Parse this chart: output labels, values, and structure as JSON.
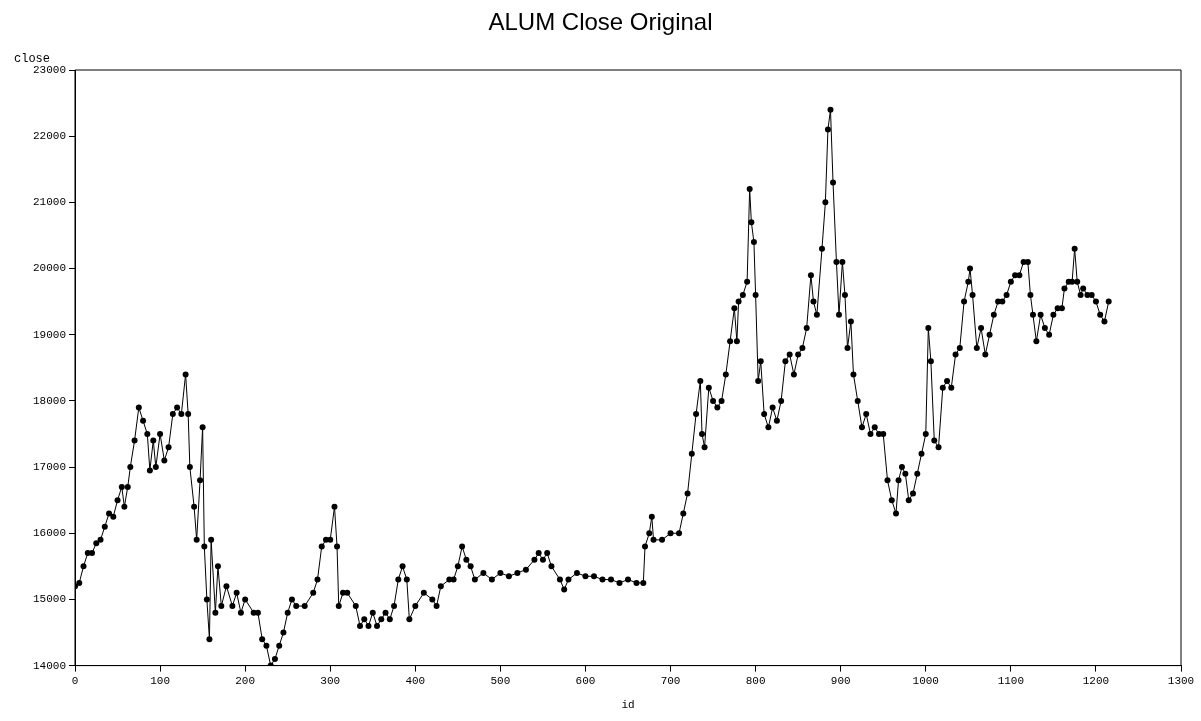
{
  "chart_data": {
    "type": "line",
    "title": "ALUM Close Original",
    "xlabel": "id",
    "ylabel": "close",
    "x": [
      0,
      5,
      10,
      15,
      20,
      25,
      30,
      35,
      40,
      45,
      50,
      55,
      58,
      62,
      65,
      70,
      75,
      80,
      85,
      88,
      92,
      95,
      100,
      105,
      110,
      115,
      120,
      125,
      130,
      133,
      135,
      140,
      143,
      147,
      150,
      152,
      155,
      158,
      160,
      165,
      168,
      172,
      178,
      185,
      190,
      195,
      200,
      210,
      215,
      220,
      225,
      230,
      235,
      240,
      245,
      250,
      255,
      260,
      270,
      280,
      285,
      290,
      295,
      300,
      305,
      308,
      310,
      315,
      320,
      330,
      335,
      340,
      345,
      350,
      355,
      360,
      365,
      370,
      375,
      380,
      385,
      390,
      393,
      400,
      410,
      420,
      425,
      430,
      440,
      445,
      450,
      455,
      460,
      465,
      470,
      480,
      490,
      500,
      510,
      520,
      530,
      540,
      545,
      550,
      555,
      560,
      570,
      575,
      580,
      590,
      600,
      610,
      620,
      630,
      640,
      650,
      660,
      668,
      670,
      675,
      678,
      680,
      690,
      700,
      710,
      715,
      720,
      725,
      730,
      735,
      737,
      740,
      745,
      750,
      755,
      760,
      765,
      770,
      775,
      778,
      780,
      785,
      790,
      793,
      795,
      798,
      800,
      803,
      806,
      810,
      815,
      820,
      825,
      830,
      835,
      840,
      845,
      850,
      855,
      860,
      865,
      868,
      872,
      878,
      882,
      885,
      888,
      891,
      895,
      898,
      902,
      905,
      908,
      912,
      915,
      920,
      925,
      930,
      935,
      940,
      945,
      950,
      955,
      960,
      965,
      968,
      972,
      976,
      980,
      985,
      990,
      995,
      1000,
      1003,
      1006,
      1010,
      1015,
      1020,
      1025,
      1030,
      1035,
      1040,
      1045,
      1050,
      1052,
      1055,
      1060,
      1065,
      1070,
      1075,
      1080,
      1085,
      1090,
      1095,
      1100,
      1105,
      1110,
      1115,
      1120,
      1123,
      1126,
      1130,
      1135,
      1140,
      1145,
      1150,
      1155,
      1160,
      1163,
      1168,
      1172,
      1175,
      1178,
      1182,
      1185,
      1190,
      1195,
      1200,
      1205,
      1210,
      1215
    ],
    "series": [
      {
        "color": "#000000",
        "values": [
          15200,
          15250,
          15500,
          15700,
          15700,
          15850,
          15900,
          16100,
          16300,
          16250,
          16500,
          16700,
          16400,
          16700,
          17000,
          17400,
          17900,
          17700,
          17500,
          16950,
          17400,
          17000,
          17500,
          17100,
          17300,
          17800,
          17900,
          17800,
          18400,
          17800,
          17000,
          16400,
          15900,
          16800,
          17600,
          15800,
          15000,
          14400,
          15900,
          14800,
          15500,
          14900,
          15200,
          14900,
          15100,
          14800,
          15000,
          14800,
          14800,
          14400,
          14300,
          14000,
          14100,
          14300,
          14500,
          14800,
          15000,
          14900,
          14900,
          15100,
          15300,
          15800,
          15900,
          15900,
          16400,
          15800,
          14900,
          15100,
          15100,
          14900,
          14600,
          14700,
          14600,
          14800,
          14600,
          14700,
          14800,
          14700,
          14900,
          15300,
          15500,
          15300,
          14700,
          14900,
          15100,
          15000,
          14900,
          15200,
          15300,
          15300,
          15500,
          15800,
          15600,
          15500,
          15300,
          15400,
          15300,
          15400,
          15350,
          15400,
          15450,
          15600,
          15700,
          15600,
          15700,
          15500,
          15300,
          15150,
          15300,
          15400,
          15350,
          15350,
          15300,
          15300,
          15250,
          15300,
          15250,
          15250,
          15800,
          16000,
          16250,
          15900,
          15900,
          16000,
          16000,
          16300,
          16600,
          17200,
          17800,
          18300,
          17500,
          17300,
          18200,
          18000,
          17900,
          18000,
          18400,
          18900,
          19400,
          18900,
          19500,
          19600,
          19800,
          21200,
          20700,
          20400,
          19600,
          18300,
          18600,
          17800,
          17600,
          17900,
          17700,
          18000,
          18600,
          18700,
          18400,
          18700,
          18800,
          19100,
          19900,
          19500,
          19300,
          20300,
          21000,
          22100,
          22400,
          21300,
          20100,
          19300,
          20100,
          19600,
          18800,
          19200,
          18400,
          18000,
          17600,
          17800,
          17500,
          17600,
          17500,
          17500,
          16800,
          16500,
          16300,
          16800,
          17000,
          16900,
          16500,
          16600,
          16900,
          17200,
          17500,
          19100,
          18600,
          17400,
          17300,
          18200,
          18300,
          18200,
          18700,
          18800,
          19500,
          19800,
          20000,
          19600,
          18800,
          19100,
          18700,
          19000,
          19300,
          19500,
          19500,
          19600,
          19800,
          19900,
          19900,
          20100,
          20100,
          19600,
          19300,
          18900,
          19300,
          19100,
          19000,
          19300,
          19400,
          19400,
          19700,
          19800,
          19800,
          20300,
          19800,
          19600,
          19700,
          19600,
          19600,
          19500,
          19300,
          19200,
          19500
        ]
      }
    ],
    "xlim": [
      0,
      1300
    ],
    "xticks": [
      0,
      100,
      200,
      300,
      400,
      500,
      600,
      700,
      800,
      900,
      1000,
      1100,
      1200,
      1300
    ],
    "ylim": [
      14000,
      23000
    ],
    "yticks": [
      14000,
      15000,
      16000,
      17000,
      18000,
      19000,
      20000,
      21000,
      22000,
      23000
    ],
    "grid": false,
    "legend": false,
    "marker": "circle",
    "line_style": "solid"
  }
}
